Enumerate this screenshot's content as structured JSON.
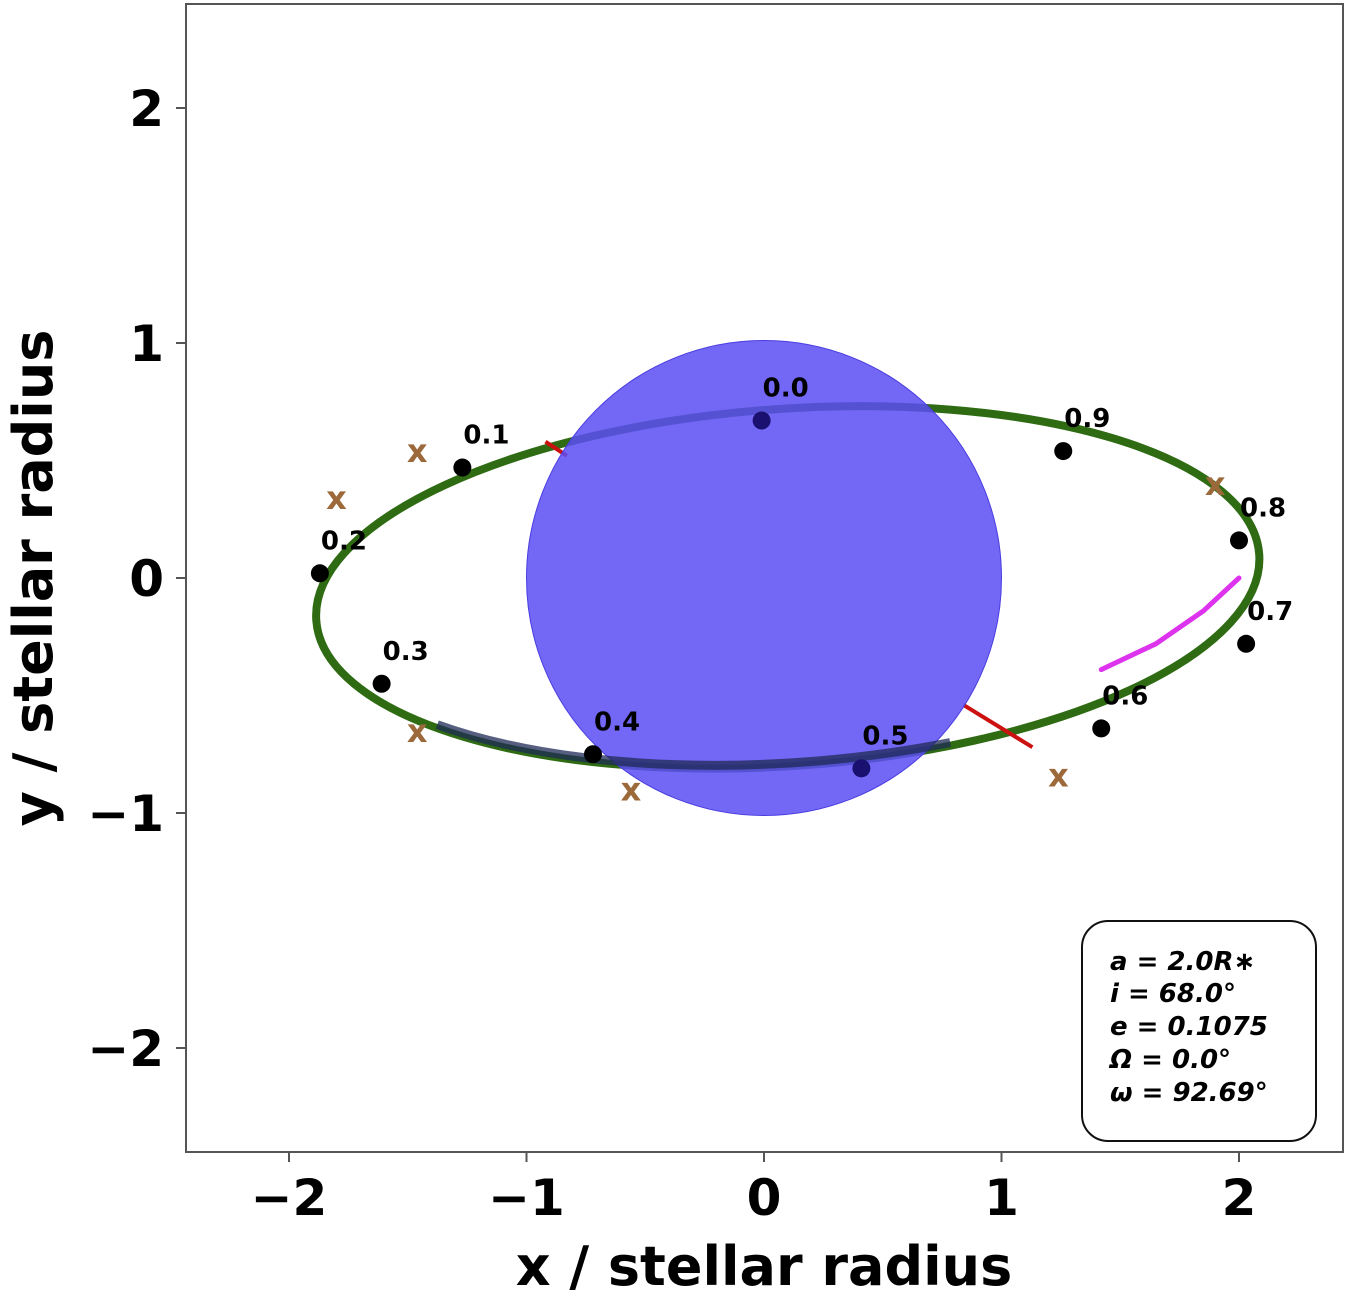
{
  "chart_data": {
    "type": "scatter",
    "title": "",
    "xlabel": "x / stellar radius",
    "ylabel": "y / stellar radius",
    "xlim": [
      -2.5,
      2.4
    ],
    "ylim": [
      -2.43,
      2.43
    ],
    "xticks": [
      -2,
      -1,
      0,
      1,
      2
    ],
    "yticks": [
      -2,
      -1,
      0,
      1,
      2
    ],
    "xtick_labels": [
      "−2",
      "−1",
      "0",
      "1",
      "2"
    ],
    "ytick_labels": [
      "−2",
      "−1",
      "0",
      "1",
      "2"
    ],
    "grid": false,
    "colors": {
      "star": "#5a4cf5",
      "orbit": "#2e6b12",
      "phase_point": "#000000",
      "x_marker": "#9c6a3a",
      "red_segment": "#cc1111",
      "magenta_arc": "#dd33ee"
    },
    "star": {
      "center": [
        0,
        0
      ],
      "radius": 1.0
    },
    "orbit": {
      "center": [
        0.1,
        -0.04
      ],
      "semi_major": 1.99,
      "semi_minor": 0.76,
      "rotation_deg": -4
    },
    "phase_points": [
      {
        "label": "0.0",
        "x": -0.01,
        "y": 0.67
      },
      {
        "label": "0.1",
        "x": -1.27,
        "y": 0.47
      },
      {
        "label": "0.2",
        "x": -1.87,
        "y": 0.02
      },
      {
        "label": "0.3",
        "x": -1.61,
        "y": -0.45
      },
      {
        "label": "0.4",
        "x": -0.72,
        "y": -0.75
      },
      {
        "label": "0.5",
        "x": 0.41,
        "y": -0.81
      },
      {
        "label": "0.6",
        "x": 1.42,
        "y": -0.64
      },
      {
        "label": "0.7",
        "x": 2.03,
        "y": -0.28
      },
      {
        "label": "0.8",
        "x": 2.0,
        "y": 0.16
      },
      {
        "label": "0.9",
        "x": 1.26,
        "y": 0.54
      }
    ],
    "x_markers": [
      {
        "x": -1.46,
        "y": 0.54
      },
      {
        "x": -1.8,
        "y": 0.34
      },
      {
        "x": -1.46,
        "y": -0.65
      },
      {
        "x": -0.56,
        "y": -0.9
      },
      {
        "x": 1.24,
        "y": -0.84
      },
      {
        "x": 1.9,
        "y": 0.4
      }
    ],
    "red_segments": [
      {
        "x1": -0.92,
        "y1": 0.58,
        "x2": -0.83,
        "y2": 0.52
      },
      {
        "x1": 0.84,
        "y1": -0.54,
        "x2": 1.13,
        "y2": -0.72
      }
    ],
    "magenta_arc": {
      "x": [
        1.42,
        1.65,
        1.85,
        2.0
      ],
      "y": [
        -0.39,
        -0.28,
        -0.14,
        0.0
      ]
    },
    "parameters": [
      "a = 2.0R∗",
      "i = 68.0°",
      "e = 0.1075",
      "Ω = 0.0°",
      "ω = 92.69°"
    ],
    "legend_location": "lower right"
  }
}
